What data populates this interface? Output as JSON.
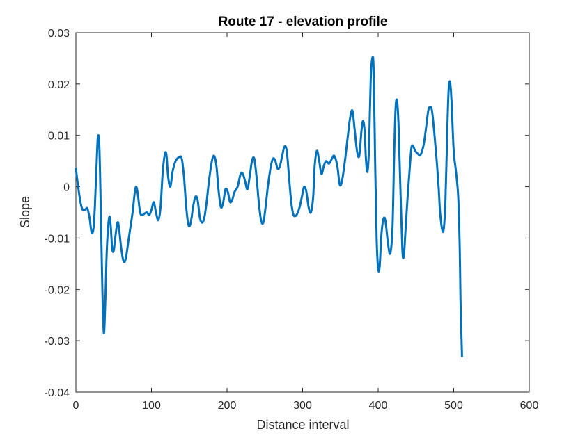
{
  "chart_data": {
    "type": "line",
    "title": "Route 17 - elevation profile",
    "xlabel": "Distance interval",
    "ylabel": "Slope",
    "xlim": [
      0,
      600
    ],
    "ylim": [
      -0.04,
      0.03
    ],
    "xticks": [
      0,
      100,
      200,
      300,
      400,
      500,
      600
    ],
    "yticks": [
      -0.04,
      -0.03,
      -0.02,
      -0.01,
      0,
      0.01,
      0.02,
      0.03
    ],
    "xtick_labels": [
      "0",
      "100",
      "200",
      "300",
      "400",
      "500",
      "600"
    ],
    "ytick_labels": [
      "-0.04",
      "-0.03",
      "-0.02",
      "-0.01",
      "0",
      "0.01",
      "0.02",
      "0.03"
    ],
    "grid": false,
    "legend": null,
    "series": [
      {
        "color": "#0072BD",
        "points": [
          [
            0,
            0.0035
          ],
          [
            3,
            0.0
          ],
          [
            6,
            -0.003
          ],
          [
            9,
            -0.0045
          ],
          [
            12,
            -0.0045
          ],
          [
            15,
            -0.0042
          ],
          [
            18,
            -0.006
          ],
          [
            21,
            -0.009
          ],
          [
            24,
            -0.007
          ],
          [
            27,
            0.003
          ],
          [
            29,
            0.0095
          ],
          [
            31,
            0.008
          ],
          [
            33,
            -0.005
          ],
          [
            35,
            -0.02
          ],
          [
            37,
            -0.0285
          ],
          [
            39,
            -0.022
          ],
          [
            41,
            -0.012
          ],
          [
            44,
            -0.006
          ],
          [
            46,
            -0.0075
          ],
          [
            48,
            -0.012
          ],
          [
            50,
            -0.0125
          ],
          [
            52,
            -0.01
          ],
          [
            55,
            -0.007
          ],
          [
            57,
            -0.008
          ],
          [
            60,
            -0.012
          ],
          [
            63,
            -0.0145
          ],
          [
            66,
            -0.014
          ],
          [
            70,
            -0.01
          ],
          [
            75,
            -0.005
          ],
          [
            78,
            -0.001
          ],
          [
            80,
            0.0
          ],
          [
            82,
            -0.0015
          ],
          [
            85,
            -0.005
          ],
          [
            88,
            -0.0055
          ],
          [
            91,
            -0.0052
          ],
          [
            94,
            -0.005
          ],
          [
            97,
            -0.0055
          ],
          [
            100,
            -0.0045
          ],
          [
            103,
            -0.003
          ],
          [
            106,
            -0.005
          ],
          [
            109,
            -0.0065
          ],
          [
            112,
            -0.004
          ],
          [
            115,
            0.003
          ],
          [
            118,
            0.0065
          ],
          [
            120,
            0.006
          ],
          [
            122,
            0.002
          ],
          [
            125,
            0.0
          ],
          [
            128,
            0.003
          ],
          [
            132,
            0.005
          ],
          [
            137,
            0.0058
          ],
          [
            140,
            0.0055
          ],
          [
            143,
            0.002
          ],
          [
            146,
            -0.004
          ],
          [
            149,
            -0.0075
          ],
          [
            152,
            -0.007
          ],
          [
            155,
            -0.004
          ],
          [
            158,
            -0.002
          ],
          [
            161,
            -0.0025
          ],
          [
            164,
            -0.006
          ],
          [
            167,
            -0.007
          ],
          [
            170,
            -0.006
          ],
          [
            173,
            -0.003
          ],
          [
            176,
            0.001
          ],
          [
            180,
            0.005
          ],
          [
            183,
            0.006
          ],
          [
            186,
            0.004
          ],
          [
            189,
            -0.001
          ],
          [
            192,
            -0.004
          ],
          [
            195,
            -0.003
          ],
          [
            198,
            -0.0005
          ],
          [
            201,
            -0.001
          ],
          [
            204,
            -0.003
          ],
          [
            207,
            -0.0025
          ],
          [
            210,
            -0.001
          ],
          [
            214,
            0.0
          ],
          [
            218,
            0.0025
          ],
          [
            221,
            0.0025
          ],
          [
            224,
            0.001
          ],
          [
            227,
            -0.0005
          ],
          [
            230,
            0.002
          ],
          [
            233,
            0.005
          ],
          [
            236,
            0.0055
          ],
          [
            239,
            0.002
          ],
          [
            242,
            -0.003
          ],
          [
            245,
            -0.0065
          ],
          [
            248,
            -0.007
          ],
          [
            251,
            -0.004
          ],
          [
            254,
            0.0
          ],
          [
            258,
            0.004
          ],
          [
            261,
            0.0055
          ],
          [
            264,
            0.005
          ],
          [
            267,
            0.0035
          ],
          [
            270,
            0.004
          ],
          [
            273,
            0.006
          ],
          [
            276,
            0.0078
          ],
          [
            279,
            0.007
          ],
          [
            282,
            0.002
          ],
          [
            285,
            -0.003
          ],
          [
            288,
            -0.0055
          ],
          [
            292,
            -0.0055
          ],
          [
            296,
            -0.004
          ],
          [
            299,
            -0.002
          ],
          [
            302,
            0.0
          ],
          [
            305,
            -0.001
          ],
          [
            308,
            -0.004
          ],
          [
            311,
            -0.005
          ],
          [
            314,
            -0.002
          ],
          [
            316,
            0.004
          ],
          [
            319,
            0.007
          ],
          [
            322,
            0.005
          ],
          [
            325,
            0.0025
          ],
          [
            328,
            0.004
          ],
          [
            331,
            0.005
          ],
          [
            335,
            0.0045
          ],
          [
            339,
            0.0055
          ],
          [
            342,
            0.006
          ],
          [
            346,
            0.004
          ],
          [
            349,
            0.0005
          ],
          [
            352,
            0.001
          ],
          [
            356,
            0.005
          ],
          [
            360,
            0.01
          ],
          [
            363,
            0.0135
          ],
          [
            366,
            0.0148
          ],
          [
            369,
            0.011
          ],
          [
            372,
            0.007
          ],
          [
            375,
            0.006
          ],
          [
            378,
            0.011
          ],
          [
            380,
            0.0128
          ],
          [
            382,
            0.011
          ],
          [
            384,
            0.005
          ],
          [
            386,
            0.003
          ],
          [
            388,
            0.008
          ],
          [
            390,
            0.02
          ],
          [
            392,
            0.0248
          ],
          [
            394,
            0.023
          ],
          [
            396,
            0.005
          ],
          [
            398,
            -0.01
          ],
          [
            400,
            -0.016
          ],
          [
            402,
            -0.0155
          ],
          [
            404,
            -0.01
          ],
          [
            406,
            -0.007
          ],
          [
            408,
            -0.006
          ],
          [
            410,
            -0.007
          ],
          [
            413,
            -0.011
          ],
          [
            416,
            -0.013
          ],
          [
            419,
            -0.008
          ],
          [
            421,
            0.005
          ],
          [
            423,
            0.015
          ],
          [
            425,
            0.0168
          ],
          [
            427,
            0.012
          ],
          [
            429,
            0.002
          ],
          [
            432,
            -0.012
          ],
          [
            434,
            -0.0135
          ],
          [
            436,
            -0.009
          ],
          [
            439,
            -0.002
          ],
          [
            442,
            0.004
          ],
          [
            444,
            0.0075
          ],
          [
            446,
            0.008
          ],
          [
            449,
            0.007
          ],
          [
            452,
            0.0065
          ],
          [
            456,
            0.0062
          ],
          [
            460,
            0.008
          ],
          [
            463,
            0.011
          ],
          [
            466,
            0.0145
          ],
          [
            468,
            0.0155
          ],
          [
            471,
            0.015
          ],
          [
            474,
            0.011
          ],
          [
            477,
            0.006
          ],
          [
            480,
            0.0
          ],
          [
            482,
            -0.005
          ],
          [
            485,
            -0.0085
          ],
          [
            487,
            -0.008
          ],
          [
            489,
            -0.003
          ],
          [
            491,
            0.008
          ],
          [
            493,
            0.018
          ],
          [
            495,
            0.0205
          ],
          [
            497,
            0.017
          ],
          [
            500,
            0.007
          ],
          [
            503,
            0.003
          ],
          [
            506,
            -0.002
          ],
          [
            508,
            -0.012
          ],
          [
            509,
            -0.022
          ],
          [
            511,
            -0.033
          ]
        ]
      }
    ]
  }
}
